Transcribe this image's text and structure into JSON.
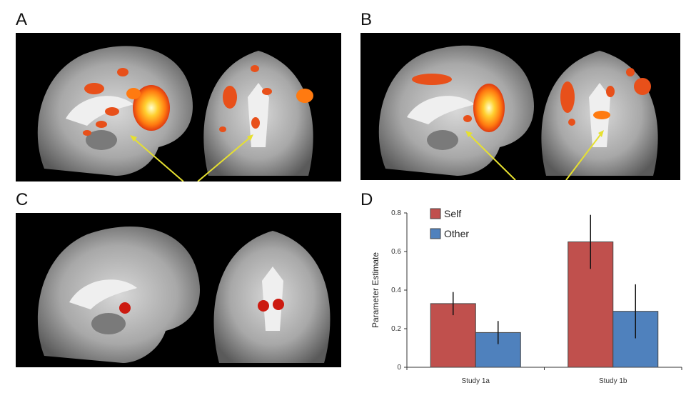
{
  "panels": {
    "a": "A",
    "b": "B",
    "c": "C",
    "d": "D"
  },
  "chart_data": {
    "type": "bar",
    "categories": [
      "Study 1a",
      "Study 1b"
    ],
    "series": [
      {
        "name": "Self",
        "values": [
          0.33,
          0.65
        ],
        "error": [
          0.06,
          0.14
        ],
        "color": "#c0504d"
      },
      {
        "name": "Other",
        "values": [
          0.18,
          0.29
        ],
        "error": [
          0.06,
          0.14
        ],
        "color": "#4f81bd"
      }
    ],
    "ylabel": "Parameter Estimate",
    "ylim": [
      0,
      0.8
    ],
    "yticks": [
      "0",
      "0.2",
      "0.4",
      "0.6",
      "0.8"
    ],
    "legend_position": "top-left",
    "grid": false
  }
}
